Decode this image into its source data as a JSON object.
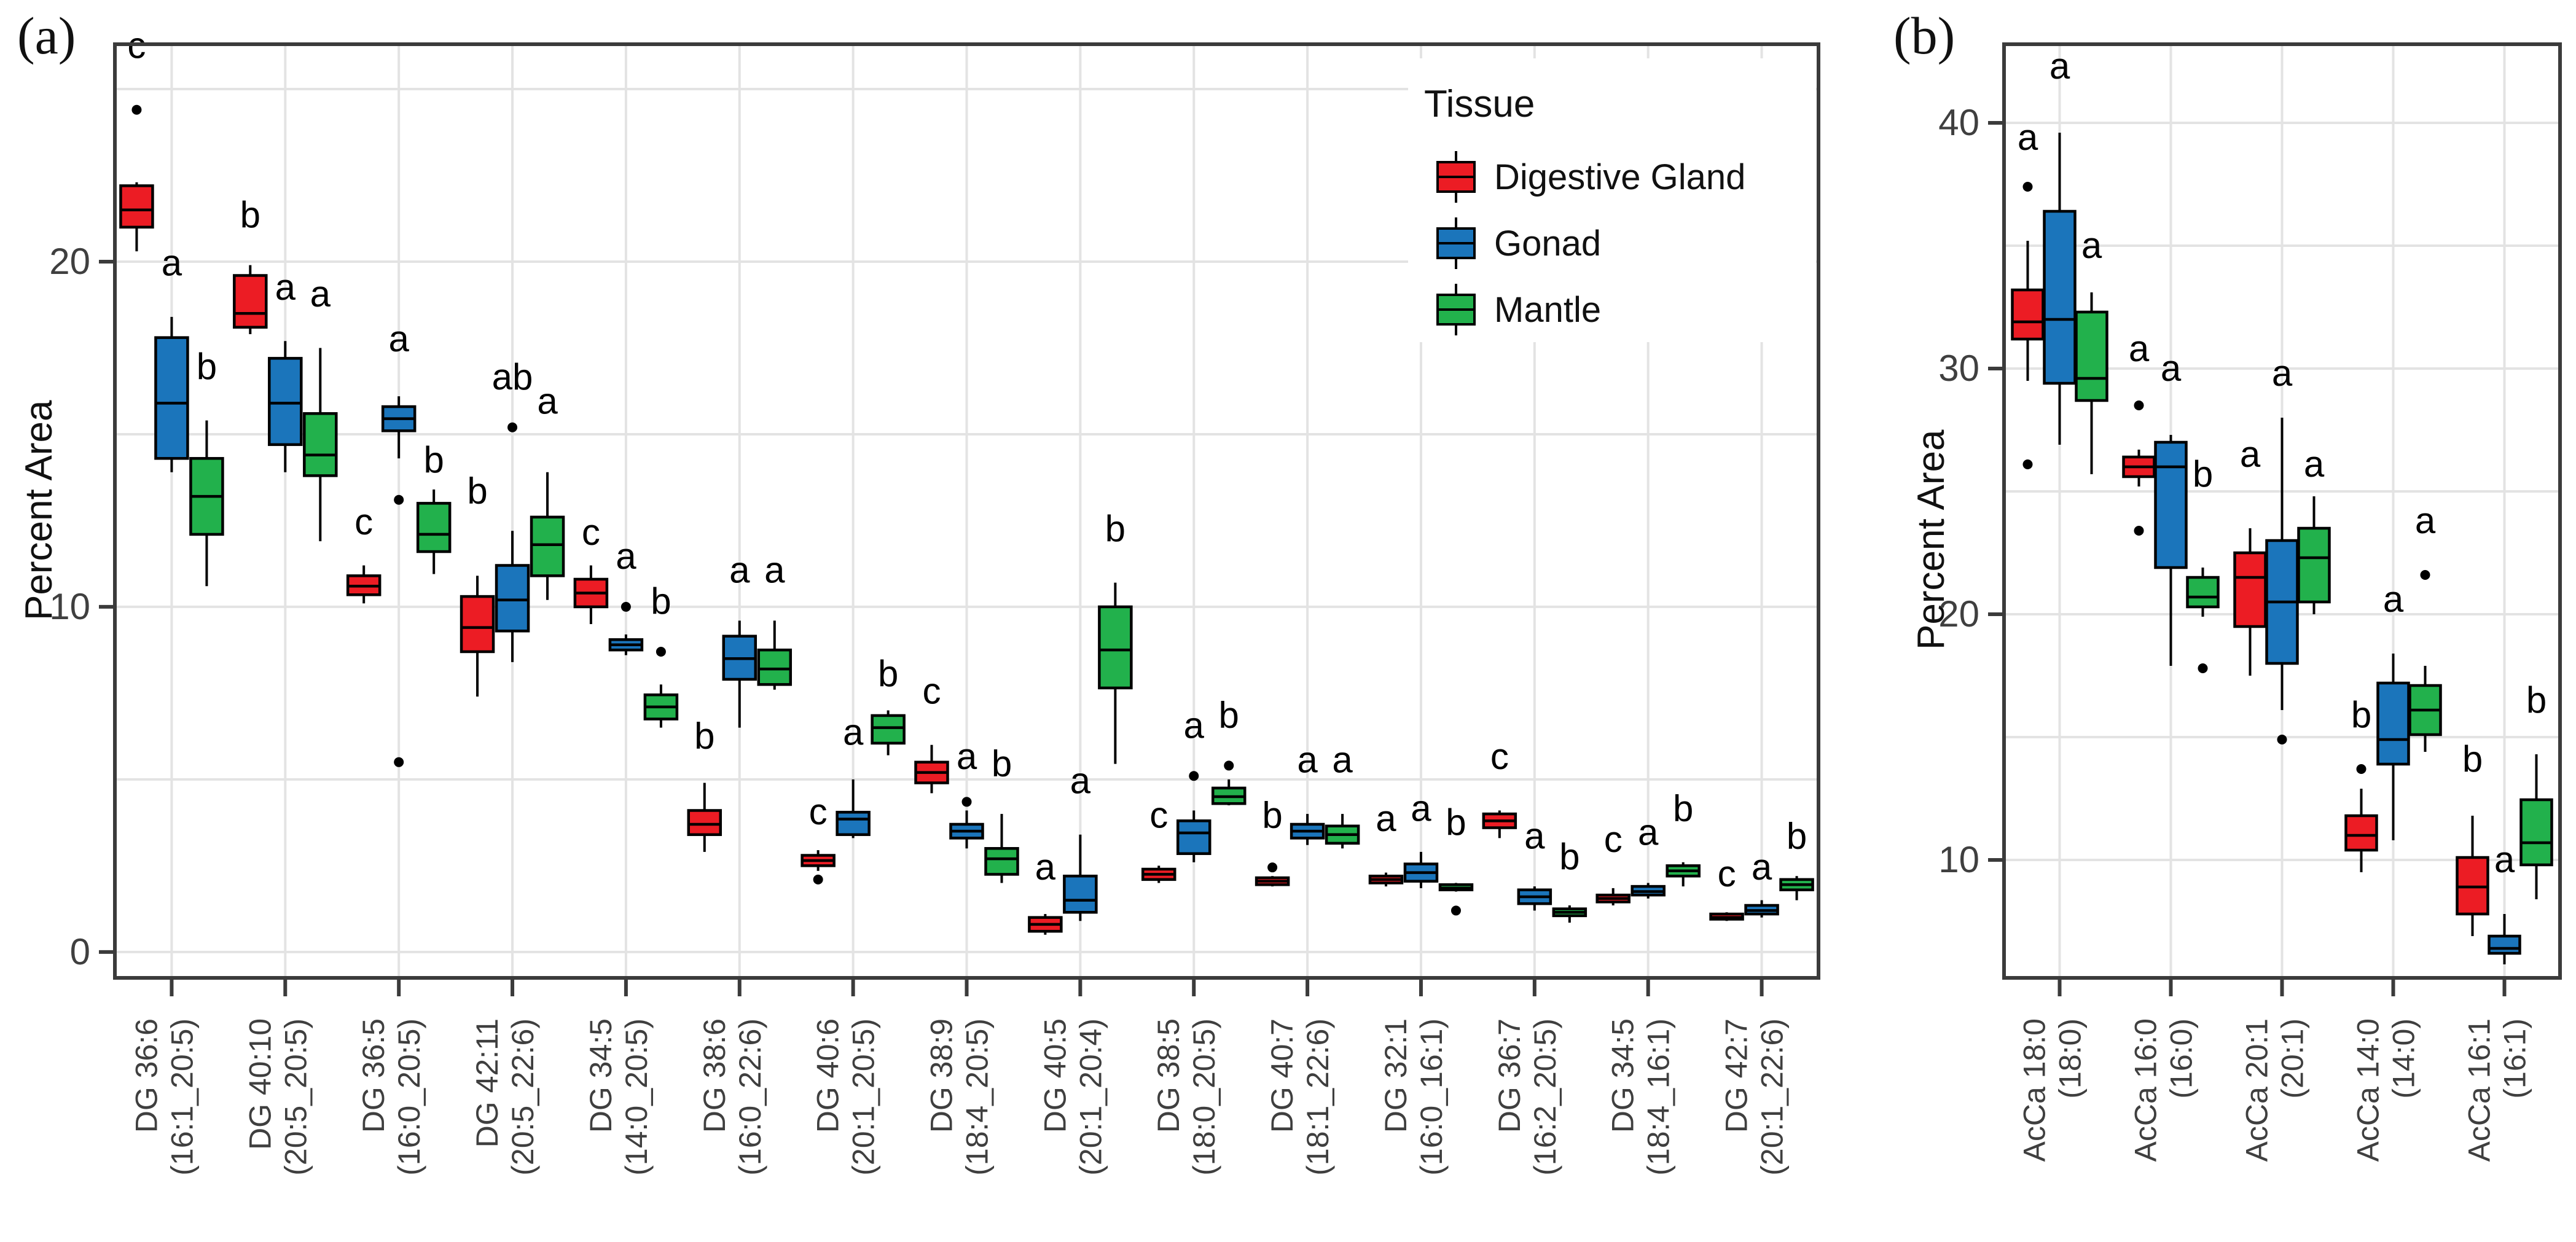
{
  "figure": {
    "panel_a_label": "(a)",
    "panel_b_label": "(b)",
    "y_axis_title": "Percent Area",
    "legend": {
      "title": "Tissue",
      "items": [
        {
          "label": "Digestive Gland",
          "color": "#EC1C24"
        },
        {
          "label": "Gonad",
          "color": "#1B75BB"
        },
        {
          "label": "Mantle",
          "color": "#22B14C"
        }
      ]
    },
    "colors": {
      "border": "#3b3b3b",
      "gridline": "#e3e3e3",
      "text": "#111111",
      "tick_text": "#3f3f3f"
    }
  },
  "chart_data": [
    {
      "type": "box",
      "panel": "a",
      "ylabel": "Percent Area",
      "y_ticks": [
        0,
        10,
        20
      ],
      "ylim": [
        -0.75,
        26.3
      ],
      "gridline_step": 5,
      "legend_title": "Tissue",
      "series": [
        "Digestive Gland",
        "Gonad",
        "Mantle"
      ],
      "categories": [
        {
          "line1": "DG 36:6",
          "line2": "(16:1_20:5)"
        },
        {
          "line1": "DG 40:10",
          "line2": "(20:5_20:5)"
        },
        {
          "line1": "DG 36:5",
          "line2": "(16:0_20:5)"
        },
        {
          "line1": "DG 42:11",
          "line2": "(20:5_22:6)"
        },
        {
          "line1": "DG 34:5",
          "line2": "(14:0_20:5)"
        },
        {
          "line1": "DG 38:6",
          "line2": "(16:0_22:6)"
        },
        {
          "line1": "DG 40:6",
          "line2": "(20:1_20:5)"
        },
        {
          "line1": "DG 38:9",
          "line2": "(18:4_20:5)"
        },
        {
          "line1": "DG 40:5",
          "line2": "(20:1_20:4)"
        },
        {
          "line1": "DG 38:5",
          "line2": "(18:0_20:5)"
        },
        {
          "line1": "DG 40:7",
          "line2": "(18:1_22:6)"
        },
        {
          "line1": "DG 32:1",
          "line2": "(16:0_16:1)"
        },
        {
          "line1": "DG 36:7",
          "line2": "(16:2_20:5)"
        },
        {
          "line1": "DG 34:5",
          "line2": "(18:4_16:1)"
        },
        {
          "line1": "DG 42:7",
          "line2": "(20:1_22:6)"
        }
      ],
      "boxes": [
        [
          {
            "q1": 21.0,
            "m": 21.5,
            "q3": 22.2,
            "lo": 20.3,
            "hi": 22.3,
            "o": [
              24.4
            ],
            "lt": "c",
            "ly": 25.9
          },
          {
            "q1": 14.3,
            "m": 15.9,
            "q3": 17.8,
            "lo": 13.9,
            "hi": 18.4,
            "o": [],
            "lt": "a",
            "ly": 19.6
          },
          {
            "q1": 12.1,
            "m": 13.2,
            "q3": 14.3,
            "lo": 10.6,
            "hi": 15.4,
            "o": [],
            "lt": "b",
            "ly": 16.6
          }
        ],
        [
          {
            "q1": 18.1,
            "m": 18.5,
            "q3": 19.6,
            "lo": 17.9,
            "hi": 19.9,
            "o": [],
            "lt": "b",
            "ly": 21.0
          },
          {
            "q1": 14.7,
            "m": 15.9,
            "q3": 17.2,
            "lo": 13.9,
            "hi": 17.7,
            "o": [],
            "lt": "a",
            "ly": 18.9
          },
          {
            "q1": 13.8,
            "m": 14.4,
            "q3": 15.6,
            "lo": 11.9,
            "hi": 17.5,
            "o": [],
            "lt": "a",
            "ly": 18.7
          }
        ],
        [
          {
            "q1": 10.35,
            "m": 10.6,
            "q3": 10.9,
            "lo": 10.1,
            "hi": 11.2,
            "o": [],
            "lt": "c",
            "ly": 12.1
          },
          {
            "q1": 15.1,
            "m": 15.45,
            "q3": 15.8,
            "lo": 14.3,
            "hi": 16.1,
            "o": [
              13.1,
              5.5
            ],
            "lt": "a",
            "ly": 17.4
          },
          {
            "q1": 11.6,
            "m": 12.1,
            "q3": 13.0,
            "lo": 10.95,
            "hi": 13.4,
            "o": [],
            "lt": "b",
            "ly": 13.9
          }
        ],
        [
          {
            "q1": 8.7,
            "m": 9.4,
            "q3": 10.3,
            "lo": 7.4,
            "hi": 10.9,
            "o": [],
            "lt": "b",
            "ly": 13.0
          },
          {
            "q1": 9.3,
            "m": 10.2,
            "q3": 11.2,
            "lo": 8.4,
            "hi": 12.2,
            "o": [
              15.2
            ],
            "lt": "ab",
            "ly": 16.3
          },
          {
            "q1": 10.9,
            "m": 11.8,
            "q3": 12.6,
            "lo": 10.2,
            "hi": 13.9,
            "o": [],
            "lt": "a",
            "ly": 15.6
          }
        ],
        [
          {
            "q1": 10.0,
            "m": 10.4,
            "q3": 10.8,
            "lo": 9.5,
            "hi": 11.2,
            "o": [],
            "lt": "c",
            "ly": 11.8
          },
          {
            "q1": 8.75,
            "m": 8.9,
            "q3": 9.05,
            "lo": 8.6,
            "hi": 9.2,
            "o": [
              10.0
            ],
            "lt": "a",
            "ly": 11.1
          },
          {
            "q1": 6.75,
            "m": 7.1,
            "q3": 7.45,
            "lo": 6.5,
            "hi": 7.75,
            "o": [
              8.7
            ],
            "lt": "b",
            "ly": 9.8
          }
        ],
        [
          {
            "q1": 3.4,
            "m": 3.7,
            "q3": 4.1,
            "lo": 2.9,
            "hi": 4.9,
            "o": [],
            "lt": "b",
            "ly": 5.9
          },
          {
            "q1": 7.9,
            "m": 8.5,
            "q3": 9.15,
            "lo": 6.5,
            "hi": 9.6,
            "o": [],
            "lt": "a",
            "ly": 10.7
          },
          {
            "q1": 7.75,
            "m": 8.2,
            "q3": 8.75,
            "lo": 7.6,
            "hi": 9.6,
            "o": [],
            "lt": "a",
            "ly": 10.7
          }
        ],
        [
          {
            "q1": 2.5,
            "m": 2.65,
            "q3": 2.8,
            "lo": 2.35,
            "hi": 2.95,
            "o": [
              2.1
            ],
            "lt": "c",
            "ly": 3.7
          },
          {
            "q1": 3.4,
            "m": 3.85,
            "q3": 4.05,
            "lo": 3.3,
            "hi": 5.0,
            "o": [],
            "lt": "a",
            "ly": 6.0
          },
          {
            "q1": 6.05,
            "m": 6.5,
            "q3": 6.85,
            "lo": 5.7,
            "hi": 7.0,
            "o": [],
            "lt": "b",
            "ly": 7.7
          }
        ],
        [
          {
            "q1": 4.9,
            "m": 5.2,
            "q3": 5.5,
            "lo": 4.6,
            "hi": 6.0,
            "o": [],
            "lt": "c",
            "ly": 7.2
          },
          {
            "q1": 3.3,
            "m": 3.5,
            "q3": 3.7,
            "lo": 3.0,
            "hi": 4.1,
            "o": [
              4.35
            ],
            "lt": "a",
            "ly": 5.3
          },
          {
            "q1": 2.25,
            "m": 2.7,
            "q3": 3.0,
            "lo": 2.0,
            "hi": 4.0,
            "o": [],
            "lt": "b",
            "ly": 5.1
          }
        ],
        [
          {
            "q1": 0.6,
            "m": 0.8,
            "q3": 1.0,
            "lo": 0.5,
            "hi": 1.1,
            "o": [],
            "lt": "a",
            "ly": 2.1
          },
          {
            "q1": 1.15,
            "m": 1.5,
            "q3": 2.2,
            "lo": 0.9,
            "hi": 3.4,
            "o": [],
            "lt": "a",
            "ly": 4.6
          },
          {
            "q1": 7.65,
            "m": 8.75,
            "q3": 10.0,
            "lo": 5.45,
            "hi": 10.7,
            "o": [],
            "lt": "b",
            "ly": 11.9
          }
        ],
        [
          {
            "q1": 2.1,
            "m": 2.25,
            "q3": 2.4,
            "lo": 2.0,
            "hi": 2.5,
            "o": [],
            "lt": "c",
            "ly": 3.6
          },
          {
            "q1": 2.85,
            "m": 3.45,
            "q3": 3.8,
            "lo": 2.6,
            "hi": 4.1,
            "o": [
              5.1
            ],
            "lt": "a",
            "ly": 6.2
          },
          {
            "q1": 4.3,
            "m": 4.5,
            "q3": 4.75,
            "lo": 4.25,
            "hi": 5.0,
            "o": [
              5.4
            ],
            "lt": "b",
            "ly": 6.5
          }
        ],
        [
          {
            "q1": 1.95,
            "m": 2.05,
            "q3": 2.15,
            "lo": 1.9,
            "hi": 2.2,
            "o": [
              2.45
            ],
            "lt": "b",
            "ly": 3.6
          },
          {
            "q1": 3.3,
            "m": 3.5,
            "q3": 3.7,
            "lo": 3.1,
            "hi": 4.0,
            "o": [],
            "lt": "a",
            "ly": 5.2
          },
          {
            "q1": 3.15,
            "m": 3.4,
            "q3": 3.65,
            "lo": 3.0,
            "hi": 4.0,
            "o": [],
            "lt": "a",
            "ly": 5.2
          }
        ],
        [
          {
            "q1": 2.0,
            "m": 2.1,
            "q3": 2.2,
            "lo": 1.9,
            "hi": 2.3,
            "o": [],
            "lt": "a",
            "ly": 3.5
          },
          {
            "q1": 2.05,
            "m": 2.3,
            "q3": 2.55,
            "lo": 1.85,
            "hi": 2.9,
            "o": [],
            "lt": "a",
            "ly": 3.8
          },
          {
            "q1": 1.8,
            "m": 1.85,
            "q3": 1.95,
            "lo": 1.75,
            "hi": 2.0,
            "o": [
              1.2
            ],
            "lt": "b",
            "ly": 3.4
          }
        ],
        [
          {
            "q1": 3.6,
            "m": 3.8,
            "q3": 4.0,
            "lo": 3.3,
            "hi": 4.1,
            "o": [],
            "lt": "c",
            "ly": 5.3
          },
          {
            "q1": 1.4,
            "m": 1.6,
            "q3": 1.8,
            "lo": 1.2,
            "hi": 1.9,
            "o": [],
            "lt": "a",
            "ly": 3.0
          },
          {
            "q1": 1.05,
            "m": 1.15,
            "q3": 1.25,
            "lo": 0.85,
            "hi": 1.35,
            "o": [],
            "lt": "b",
            "ly": 2.4
          }
        ],
        [
          {
            "q1": 1.45,
            "m": 1.55,
            "q3": 1.65,
            "lo": 1.35,
            "hi": 1.85,
            "o": [],
            "lt": "c",
            "ly": 2.9
          },
          {
            "q1": 1.65,
            "m": 1.75,
            "q3": 1.9,
            "lo": 1.55,
            "hi": 2.0,
            "o": [],
            "lt": "a",
            "ly": 3.1
          },
          {
            "q1": 2.2,
            "m": 2.35,
            "q3": 2.5,
            "lo": 1.9,
            "hi": 2.6,
            "o": [],
            "lt": "b",
            "ly": 3.8
          }
        ],
        [
          {
            "q1": 0.95,
            "m": 1.0,
            "q3": 1.1,
            "lo": 0.9,
            "hi": 1.15,
            "o": [],
            "lt": "c",
            "ly": 1.9
          },
          {
            "q1": 1.1,
            "m": 1.2,
            "q3": 1.35,
            "lo": 1.0,
            "hi": 1.5,
            "o": [],
            "lt": "a",
            "ly": 2.1
          },
          {
            "q1": 1.8,
            "m": 1.95,
            "q3": 2.1,
            "lo": 1.5,
            "hi": 2.2,
            "o": [],
            "lt": "b",
            "ly": 3.0
          }
        ]
      ]
    },
    {
      "type": "box",
      "panel": "b",
      "ylabel": "Percent Area",
      "y_ticks": [
        10,
        20,
        30,
        40
      ],
      "ylim": [
        5.2,
        43.2
      ],
      "gridline_step": 5,
      "series": [
        "Digestive Gland",
        "Gonad",
        "Mantle"
      ],
      "categories": [
        {
          "line1": "AcCa 18:0",
          "line2": "(18:0)"
        },
        {
          "line1": "AcCa 16:0",
          "line2": "(16:0)"
        },
        {
          "line1": "AcCa 20:1",
          "line2": "(20:1)"
        },
        {
          "line1": "AcCa 14:0",
          "line2": "(14:0)"
        },
        {
          "line1": "AcCa 16:1",
          "line2": "(16:1)"
        }
      ],
      "boxes": [
        [
          {
            "q1": 31.2,
            "m": 31.9,
            "q3": 33.2,
            "lo": 29.5,
            "hi": 35.2,
            "o": [
              37.4,
              26.1
            ],
            "lt": "a",
            "ly": 38.9
          },
          {
            "q1": 29.4,
            "m": 32.0,
            "q3": 36.4,
            "lo": 26.9,
            "hi": 39.6,
            "o": [],
            "lt": "a",
            "ly": 41.8
          },
          {
            "q1": 28.7,
            "m": 29.6,
            "q3": 32.3,
            "lo": 25.7,
            "hi": 33.1,
            "o": [],
            "lt": "a",
            "ly": 34.5
          }
        ],
        [
          {
            "q1": 25.6,
            "m": 26.0,
            "q3": 26.4,
            "lo": 25.2,
            "hi": 26.7,
            "o": [
              28.5,
              23.4
            ],
            "lt": "a",
            "ly": 30.3
          },
          {
            "q1": 21.9,
            "m": 26.0,
            "q3": 27.0,
            "lo": 17.9,
            "hi": 27.3,
            "o": [],
            "lt": "a",
            "ly": 29.5
          },
          {
            "q1": 20.3,
            "m": 20.7,
            "q3": 21.5,
            "lo": 19.9,
            "hi": 21.9,
            "o": [
              17.8
            ],
            "lt": "b",
            "ly": 25.2
          }
        ],
        [
          {
            "q1": 19.5,
            "m": 21.5,
            "q3": 22.5,
            "lo": 17.5,
            "hi": 23.5,
            "o": [],
            "lt": "a",
            "ly": 26.0
          },
          {
            "q1": 18.0,
            "m": 20.5,
            "q3": 23.0,
            "lo": 16.1,
            "hi": 28.0,
            "o": [
              14.9
            ],
            "lt": "a",
            "ly": 29.3
          },
          {
            "q1": 20.5,
            "m": 22.3,
            "q3": 23.5,
            "lo": 20.0,
            "hi": 24.8,
            "o": [],
            "lt": "a",
            "ly": 25.6
          }
        ],
        [
          {
            "q1": 10.4,
            "m": 11.0,
            "q3": 11.8,
            "lo": 9.5,
            "hi": 12.9,
            "o": [
              13.7
            ],
            "lt": "b",
            "ly": 15.4
          },
          {
            "q1": 13.9,
            "m": 14.9,
            "q3": 17.2,
            "lo": 10.8,
            "hi": 18.4,
            "o": [],
            "lt": "a",
            "ly": 20.1
          },
          {
            "q1": 15.1,
            "m": 16.1,
            "q3": 17.1,
            "lo": 14.4,
            "hi": 17.9,
            "o": [
              21.6
            ],
            "lt": "a",
            "ly": 23.3
          }
        ],
        [
          {
            "q1": 7.8,
            "m": 8.9,
            "q3": 10.1,
            "lo": 6.9,
            "hi": 11.8,
            "o": [],
            "lt": "b",
            "ly": 13.6
          },
          {
            "q1": 6.2,
            "m": 6.4,
            "q3": 6.9,
            "lo": 5.75,
            "hi": 7.8,
            "o": [],
            "lt": "a",
            "ly": 9.5
          },
          {
            "q1": 9.8,
            "m": 10.7,
            "q3": 12.45,
            "lo": 8.4,
            "hi": 14.3,
            "o": [],
            "lt": "b",
            "ly": 16.0
          }
        ]
      ]
    }
  ]
}
